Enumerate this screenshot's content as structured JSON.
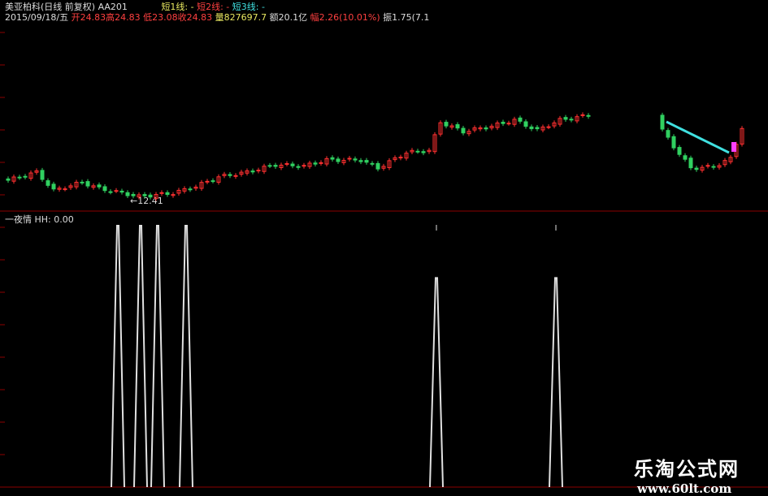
{
  "header": {
    "stock_name": "美亚柏科(日线 前复权) AA201",
    "ma1_label": "短1线: -",
    "ma2_label": "短2线: -",
    "ma3_label": "短3线: -",
    "date": "2015/09/18/五",
    "open": "开24.83",
    "high": "高24.83",
    "low": "低23.08",
    "close": "收24.83",
    "volume": "量827697.7",
    "amount": "额20.1亿",
    "change": "幅2.26(10.01%)",
    "amplitude": "振1.75(7.1"
  },
  "price_chart": {
    "low_marker": "←12.41"
  },
  "indicator": {
    "title": "一夜情  HH: 0.00"
  },
  "watermark": {
    "name": "乐淘公式网",
    "url": "www.60lt.com"
  },
  "colors": {
    "up": "#ff3030",
    "down": "#30d060",
    "ma": "#40e0e0",
    "signal": "#e0e0e0",
    "grid": "#8b0000"
  },
  "chart_data": {
    "type": "candlestick",
    "close_keypoints": [
      [
        0,
        14.8
      ],
      [
        5,
        16.0
      ],
      [
        8,
        13.3
      ],
      [
        13,
        14.5
      ],
      [
        16,
        13.6
      ],
      [
        23,
        12.41
      ],
      [
        29,
        12.9
      ],
      [
        33,
        13.9
      ],
      [
        37,
        15.3
      ],
      [
        42,
        16.0
      ],
      [
        47,
        17.1
      ],
      [
        52,
        16.9
      ],
      [
        56,
        17.8
      ],
      [
        62,
        17.8
      ],
      [
        65,
        16.6
      ],
      [
        70,
        18.9
      ],
      [
        74,
        19.2
      ],
      [
        76,
        23.4
      ],
      [
        80,
        22.0
      ],
      [
        85,
        22.8
      ],
      [
        89,
        23.7
      ],
      [
        93,
        22.2
      ],
      [
        97,
        23.7
      ],
      [
        102,
        24.4
      ],
      [
        115,
        22.2
      ],
      [
        117,
        19.8
      ],
      [
        120,
        16.6
      ],
      [
        124,
        16.8
      ],
      [
        127,
        18.0
      ],
      [
        129,
        22.6
      ]
    ],
    "gap_indices": [
      103,
      114
    ],
    "indicator_spikes": [
      [
        18,
        1.0
      ],
      [
        22,
        1.0
      ],
      [
        25,
        1.0
      ],
      [
        30,
        1.0
      ],
      [
        74,
        0.8
      ],
      [
        95,
        0.8
      ]
    ]
  }
}
